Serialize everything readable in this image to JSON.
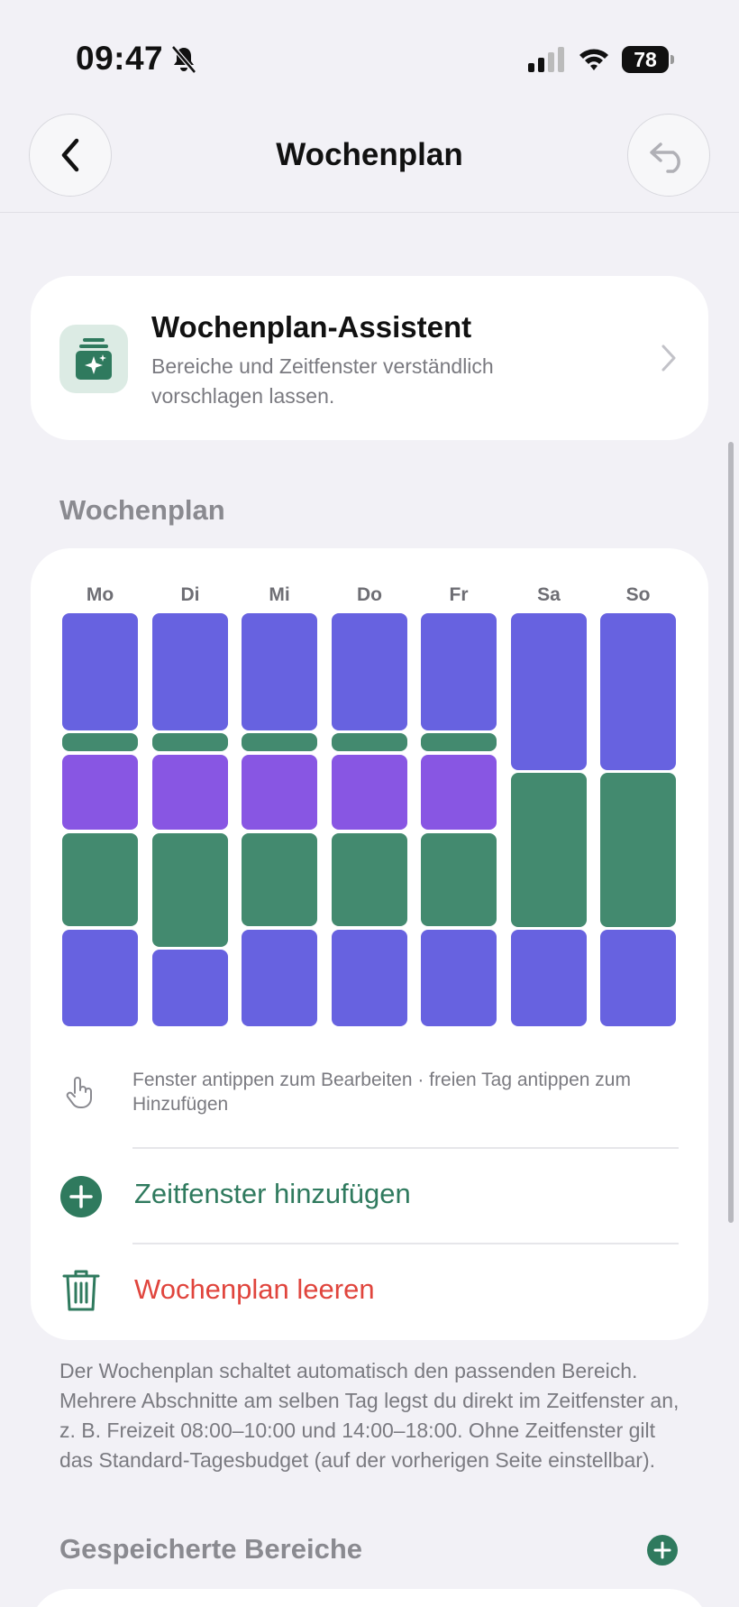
{
  "status_bar": {
    "time": "09:47",
    "battery": "78"
  },
  "nav": {
    "title": "Wochenplan"
  },
  "assistant": {
    "title": "Wochenplan-Assistent",
    "subtitle": "Bereiche und Zeitfenster verständlich vorschlagen lassen."
  },
  "week_section": {
    "label": "Wochenplan",
    "days": [
      {
        "label": "Mo",
        "segments": [
          "blue",
          "green",
          "purple",
          "green",
          "blue"
        ]
      },
      {
        "label": "Di",
        "segments": [
          "blue",
          "green",
          "purple",
          "green",
          "blue"
        ]
      },
      {
        "label": "Mi",
        "segments": [
          "blue",
          "green",
          "purple",
          "green",
          "blue"
        ]
      },
      {
        "label": "Do",
        "segments": [
          "blue",
          "green",
          "purple",
          "green",
          "blue"
        ]
      },
      {
        "label": "Fr",
        "segments": [
          "blue",
          "green",
          "purple",
          "green",
          "blue"
        ]
      },
      {
        "label": "Sa",
        "segments": [
          "blue",
          "green",
          "blue"
        ]
      },
      {
        "label": "So",
        "segments": [
          "blue",
          "green",
          "blue"
        ]
      }
    ],
    "hint": "Fenster antippen zum Bearbeiten · freien Tag antippen zum Hinzufügen",
    "add_label": "Zeitfenster hinzufügen",
    "clear_label": "Wochenplan leeren"
  },
  "colors": {
    "blue": "#6762e0",
    "green": "#438a6f",
    "purple": "#8856e3",
    "accent_green": "#2f7a5e",
    "danger": "#e0453d"
  },
  "footer": "Der Wochenplan schaltet automatisch den passenden Bereich. Mehrere Abschnitte am selben Tag legst du direkt im Zeitfenster an, z. B. Freizeit 08:00–10:00 und 14:00–18:00. Ohne Zeitfenster gilt das Standard-Tagesbudget (auf der vorherigen Seite einstellbar).",
  "saved_section": {
    "label": "Gespeicherte Bereiche"
  }
}
